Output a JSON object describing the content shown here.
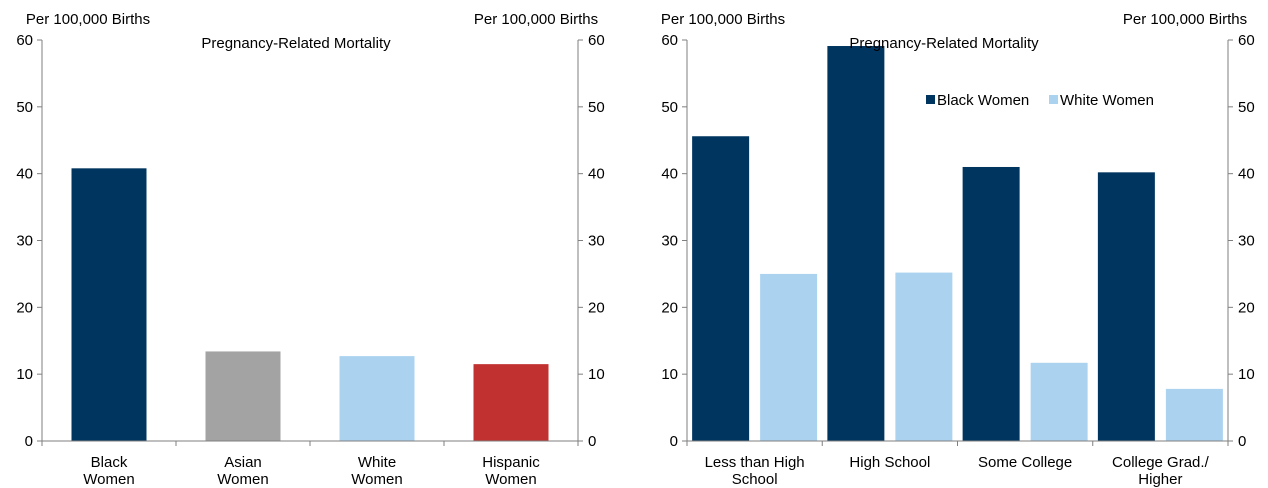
{
  "colors": {
    "black_women": "#003560",
    "asian_women": "#a3a3a3",
    "white_women": "#abd3f0",
    "hispanic_women": "#c0312f",
    "axis": "#7f7f7f"
  },
  "chart_data": [
    {
      "type": "bar",
      "title": "Pregnancy-Related Mortality",
      "ylabel_left": "Per 100,000 Births",
      "ylabel_right": "Per 100,000 Births",
      "ylim": [
        0,
        60
      ],
      "yticks": [
        0,
        10,
        20,
        30,
        40,
        50,
        60
      ],
      "grid": false,
      "categories": [
        [
          "Black",
          "Women"
        ],
        [
          "Asian",
          "Women"
        ],
        [
          "White",
          "Women"
        ],
        [
          "Hispanic",
          "Women"
        ]
      ],
      "values": [
        40.8,
        13.4,
        12.7,
        11.5
      ],
      "bar_colors": [
        "black_women",
        "asian_women",
        "white_women",
        "hispanic_women"
      ]
    },
    {
      "type": "bar",
      "title": "Pregnancy-Related Mortality",
      "ylabel_left": "Per 100,000 Births",
      "ylabel_right": "Per 100,000 Births",
      "ylim": [
        0,
        60
      ],
      "yticks": [
        0,
        10,
        20,
        30,
        40,
        50,
        60
      ],
      "grid": false,
      "legend": "top-right",
      "categories": [
        [
          "Less than High",
          "School"
        ],
        [
          "High School"
        ],
        [
          "Some College"
        ],
        [
          "College Grad./",
          "Higher"
        ]
      ],
      "series": [
        {
          "name": "Black Women",
          "values": [
            45.6,
            59.1,
            41.0,
            40.2
          ],
          "color": "black_women"
        },
        {
          "name": "White Women",
          "values": [
            25.0,
            25.2,
            11.7,
            7.8
          ],
          "color": "white_women"
        }
      ]
    }
  ]
}
